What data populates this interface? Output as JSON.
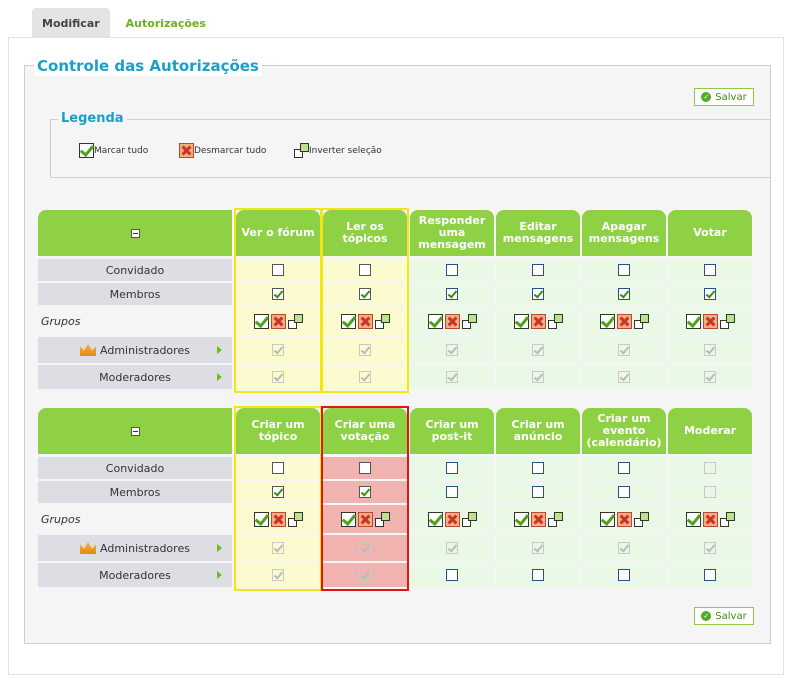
{
  "tabs": [
    {
      "label": "Modificar",
      "active": true
    },
    {
      "label": "Autorizações",
      "active": false
    }
  ],
  "main": {
    "title": "Controle das Autorizações",
    "save_label": "Salvar"
  },
  "legend": {
    "title": "Legenda",
    "items": [
      {
        "icon": "check-all-icon",
        "label": "Marcar tudo"
      },
      {
        "icon": "uncheck-all-icon",
        "label": "Desmarcar tudo"
      },
      {
        "icon": "invert-selection-icon",
        "label": "Inverter seleção"
      }
    ]
  },
  "row_labels": {
    "guest": "Convidado",
    "members": "Membros",
    "groups": "Grupos",
    "admins": "Administradores",
    "mods": "Moderadores"
  },
  "table1": {
    "columns": [
      "Ver o fórum",
      "Ler os tópicos",
      "Responder uma mensagem",
      "Editar mensagens",
      "Apagar mensagens",
      "Votar"
    ]
  },
  "table2": {
    "columns": [
      "Criar um tópico",
      "Criar uma votação",
      "Criar um post-it",
      "Criar um anúncio",
      "Criar um evento (calendário)",
      "Moderar"
    ]
  },
  "colors": {
    "accent_green": "#8fd144",
    "title_blue": "#1a9fc9",
    "highlight_yellow": "#f2e615",
    "highlight_red": "#e11515"
  }
}
